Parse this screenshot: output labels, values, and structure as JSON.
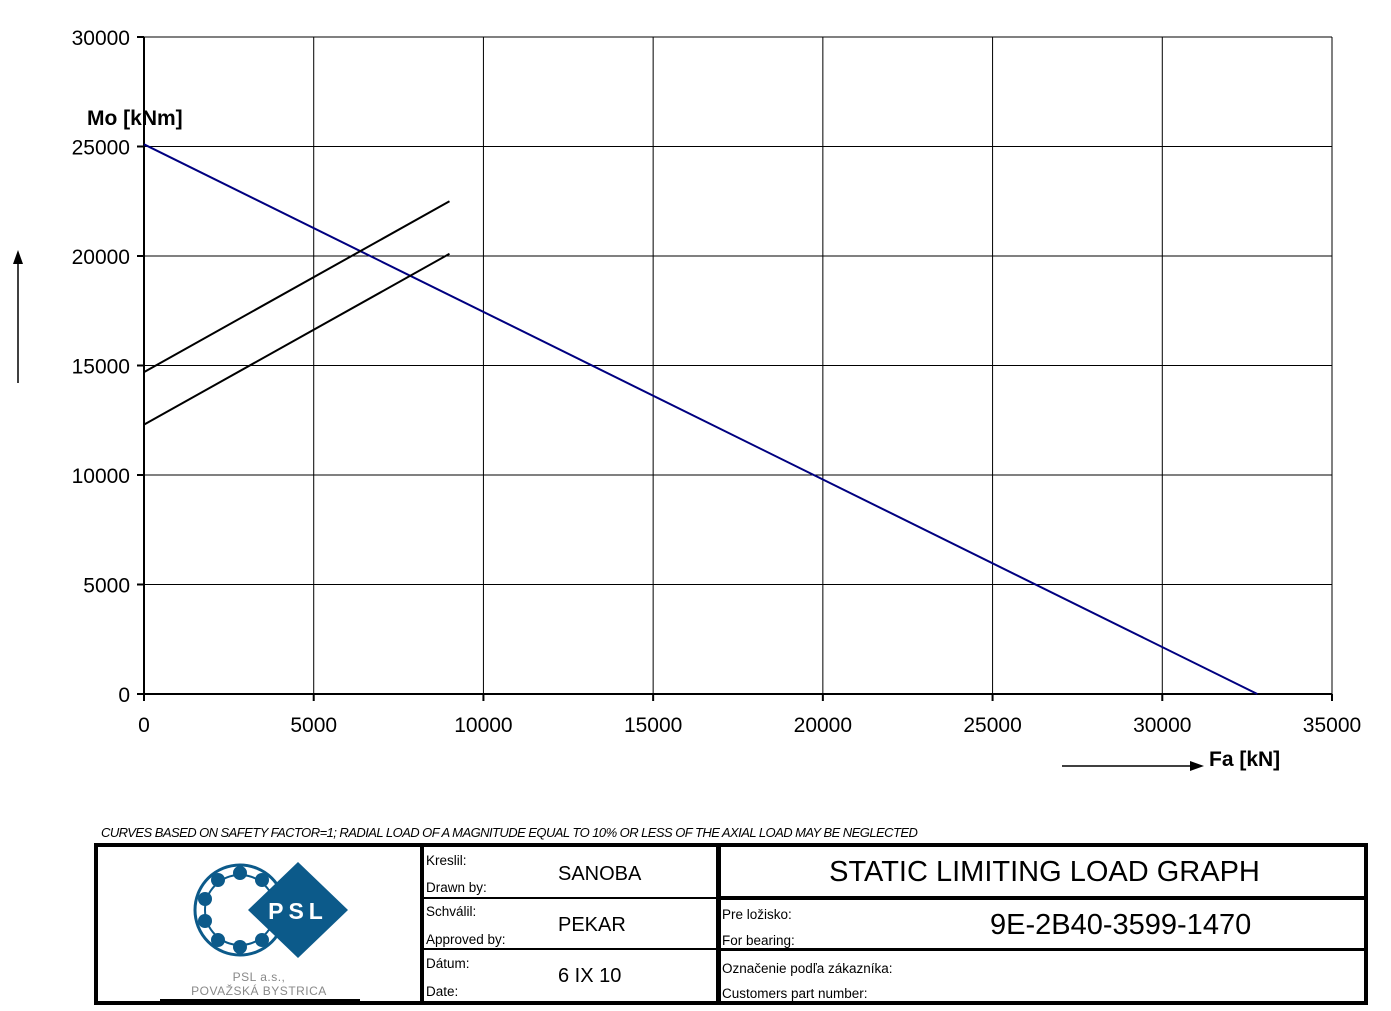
{
  "chart_data": {
    "type": "line",
    "xlabel": "Fa [kN]",
    "ylabel": "Mo [kNm]",
    "xlim": [
      0,
      35000
    ],
    "ylim": [
      0,
      30000
    ],
    "xticks": [
      0,
      5000,
      10000,
      15000,
      20000,
      25000,
      30000,
      35000
    ],
    "yticks": [
      0,
      5000,
      10000,
      15000,
      20000,
      25000,
      30000
    ],
    "grid": true,
    "legend": "none",
    "series": [
      {
        "color": "#000080",
        "x": [
          0,
          32800
        ],
        "y": [
          25100,
          0
        ]
      },
      {
        "color": "#000000",
        "x": [
          0,
          9000
        ],
        "y": [
          14700,
          22500
        ]
      },
      {
        "color": "#000000",
        "x": [
          0,
          9000
        ],
        "y": [
          12300,
          20100
        ]
      }
    ]
  },
  "note": "CURVES BASED ON SAFETY FACTOR=1; RADIAL LOAD OF A MAGNITUDE EQUAL TO 10% OR LESS OF THE AXIAL LOAD MAY BE NEGLECTED",
  "title_block": {
    "logo_text": "PSL",
    "company_line1": "PSL  a.s.,",
    "company_line2": "POVAŽSKÁ  BYSTRICA",
    "drawn_label_sk": "Kreslil:",
    "drawn_label_en": "Drawn by:",
    "drawn_value": "SANOBA",
    "approved_label_sk": "Schválil:",
    "approved_label_en": "Approved by:",
    "approved_value": "PEKAR",
    "date_label_sk": "Dátum:",
    "date_label_en": "Date:",
    "date_value": "6 IX 10",
    "title": "STATIC LIMITING LOAD GRAPH",
    "bearing_label_sk": "Pre ložisko:",
    "bearing_label_en": "For bearing:",
    "bearing_value": "9E-2B40-3599-1470",
    "customer_label_sk": "Označenie podľa zákazníka:",
    "customer_label_en": "Customers part number:"
  }
}
